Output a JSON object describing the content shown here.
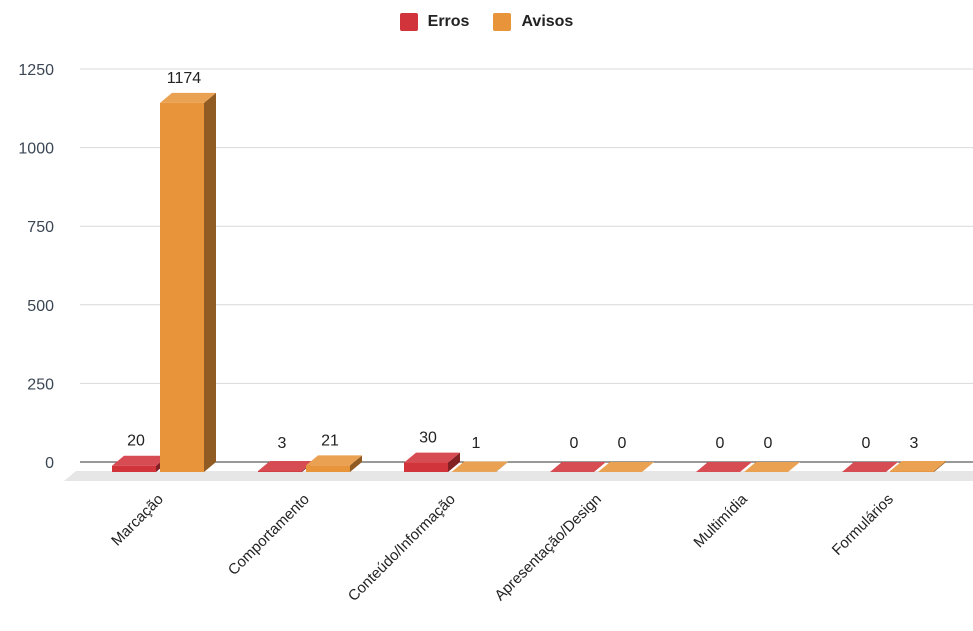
{
  "chart_data": {
    "type": "bar",
    "categories": [
      "Marcação",
      "Comportamento",
      "Conteúdo/Informação",
      "Apresentação/Design",
      "Multimídia",
      "Formulários"
    ],
    "series": [
      {
        "name": "Erros",
        "color": "#d1343a",
        "values": [
          20,
          3,
          30,
          0,
          0,
          0
        ]
      },
      {
        "name": "Avisos",
        "color": "#e8943a",
        "values": [
          1174,
          21,
          1,
          0,
          0,
          3
        ]
      }
    ],
    "yticks": [
      0,
      250,
      500,
      750,
      1000,
      1250
    ],
    "ylim": [
      0,
      1250
    ],
    "style": "3d-column",
    "legend_position": "top-center",
    "grid": true
  }
}
